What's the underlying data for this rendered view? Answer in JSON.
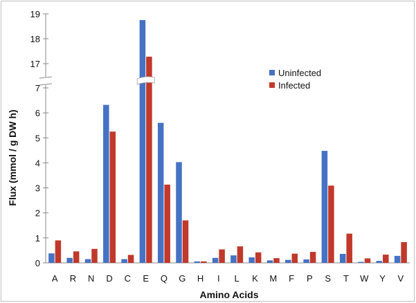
{
  "chart_data": {
    "type": "bar",
    "xlabel": "Amino Acids",
    "ylabel": "Flux (mmol / g DW h)",
    "categories": [
      "A",
      "R",
      "N",
      "D",
      "C",
      "E",
      "Q",
      "G",
      "H",
      "I",
      "L",
      "K",
      "M",
      "F",
      "P",
      "S",
      "T",
      "W",
      "Y",
      "V"
    ],
    "series": [
      {
        "name": "Uninfected",
        "color": "#4572c4",
        "values": [
          0.38,
          0.2,
          0.15,
          6.32,
          0.15,
          18.75,
          5.6,
          4.03,
          0.06,
          0.2,
          0.3,
          0.22,
          0.1,
          0.12,
          0.14,
          4.48,
          0.36,
          0.04,
          0.08,
          0.28
        ]
      },
      {
        "name": "Infected",
        "color": "#c0392b",
        "values": [
          0.9,
          0.46,
          0.56,
          5.25,
          0.32,
          17.28,
          3.13,
          1.7,
          0.06,
          0.54,
          0.66,
          0.42,
          0.19,
          0.37,
          0.44,
          3.09,
          1.17,
          0.18,
          0.33,
          0.83
        ]
      }
    ],
    "y_axis": {
      "broken": true,
      "lower_range": [
        0,
        7
      ],
      "upper_range": [
        17,
        19
      ],
      "lower_ticks": [
        "0",
        "1",
        "2",
        "3",
        "4",
        "5",
        "6",
        "7"
      ],
      "upper_ticks": [
        "17",
        "18",
        "19"
      ]
    },
    "grid": false,
    "legend_position": "top-right"
  }
}
